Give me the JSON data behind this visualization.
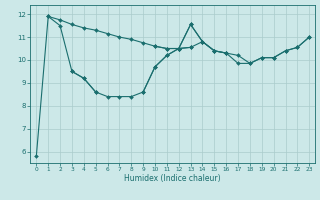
{
  "xlabel": "Humidex (Indice chaleur)",
  "x": [
    0,
    1,
    2,
    3,
    4,
    5,
    6,
    7,
    8,
    9,
    10,
    11,
    12,
    13,
    14,
    15,
    16,
    17,
    18,
    19,
    20,
    21,
    22,
    23
  ],
  "line_main": [
    5.8,
    11.9,
    11.5,
    9.5,
    9.2,
    8.6,
    8.4,
    8.4,
    8.4,
    8.6,
    9.7,
    10.2,
    10.5,
    11.55,
    10.8,
    10.4,
    10.3,
    9.85,
    9.85,
    10.1,
    10.1,
    10.4,
    10.55,
    11.0
  ],
  "line_top": [
    null,
    11.9,
    11.75,
    11.55,
    11.4,
    11.3,
    11.15,
    11.0,
    10.9,
    10.75,
    10.6,
    10.5,
    10.5,
    10.55,
    null,
    null,
    null,
    null,
    null,
    null,
    null,
    null,
    null,
    null
  ],
  "line_mid": [
    null,
    null,
    null,
    9.5,
    9.2,
    8.6,
    null,
    null,
    null,
    8.6,
    9.7,
    10.2,
    10.5,
    11.55,
    10.8,
    10.4,
    10.3,
    null,
    null,
    null,
    null,
    null,
    null,
    null
  ],
  "line_right": [
    null,
    null,
    null,
    null,
    null,
    null,
    null,
    null,
    null,
    null,
    10.6,
    10.5,
    10.5,
    10.55,
    10.8,
    10.4,
    10.3,
    10.2,
    9.85,
    10.1,
    10.1,
    10.4,
    10.55,
    11.0
  ],
  "bg_color": "#cce8e8",
  "line_color": "#1a6e6e",
  "grid_color": "#aacccc",
  "ylim": [
    5.5,
    12.4
  ],
  "xlim": [
    -0.5,
    23.5
  ],
  "yticks": [
    6,
    7,
    8,
    9,
    10,
    11,
    12
  ],
  "xticks": [
    0,
    1,
    2,
    3,
    4,
    5,
    6,
    7,
    8,
    9,
    10,
    11,
    12,
    13,
    14,
    15,
    16,
    17,
    18,
    19,
    20,
    21,
    22,
    23
  ],
  "marker": "D",
  "ms": 2.0,
  "lw": 0.8
}
